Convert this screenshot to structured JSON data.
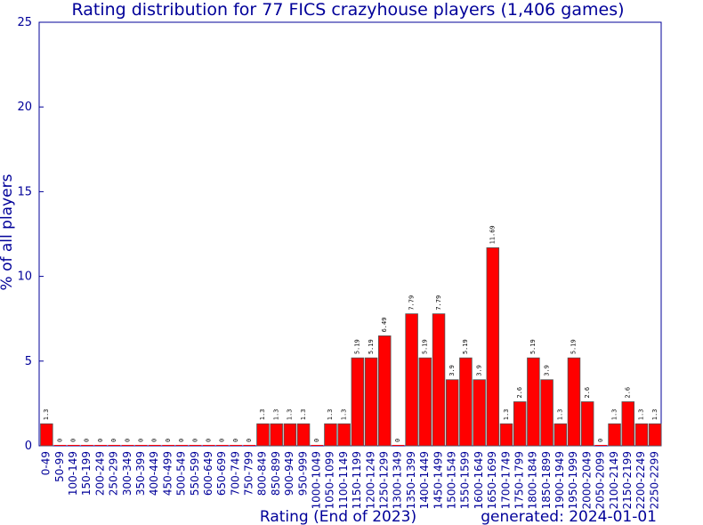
{
  "chart_data": {
    "type": "bar",
    "title": "Rating distribution for 77 FICS crazyhouse players (1,406 games)",
    "xlabel": "Rating (End of 2023)",
    "ylabel": "% of all players",
    "footer": "generated: 2024-01-01",
    "ylim": [
      0,
      25
    ],
    "yticks": [
      "0",
      "5",
      "10",
      "15",
      "20",
      "25"
    ],
    "grid": false,
    "bar_color": "#ff0000",
    "text_color": "#000099",
    "categories": [
      "0-49",
      "50-99",
      "100-149",
      "150-199",
      "200-249",
      "250-299",
      "300-349",
      "350-399",
      "400-449",
      "450-499",
      "500-549",
      "550-599",
      "600-649",
      "650-699",
      "700-749",
      "750-799",
      "800-849",
      "850-899",
      "900-949",
      "950-999",
      "1000-1049",
      "1050-1099",
      "1100-1149",
      "1150-1199",
      "1200-1249",
      "1250-1299",
      "1300-1349",
      "1350-1399",
      "1400-1449",
      "1450-1499",
      "1500-1549",
      "1550-1599",
      "1600-1649",
      "1650-1699",
      "1700-1749",
      "1750-1799",
      "1800-1849",
      "1850-1899",
      "1900-1949",
      "1950-1999",
      "2000-2049",
      "2050-2099",
      "2100-2149",
      "2150-2199",
      "2200-2249",
      "2250-2299"
    ],
    "values": [
      1.3,
      0,
      0,
      0,
      0,
      0,
      0,
      0,
      0,
      0,
      0,
      0,
      0,
      0,
      0,
      0,
      1.3,
      1.3,
      1.3,
      1.3,
      0,
      1.3,
      1.3,
      5.19,
      5.19,
      6.49,
      0,
      7.79,
      5.19,
      7.79,
      3.9,
      5.19,
      3.9,
      11.69,
      1.3,
      2.6,
      5.19,
      3.9,
      1.3,
      5.19,
      2.6,
      0,
      1.3,
      2.6,
      1.3,
      1.3
    ],
    "data_labels": [
      "1.3",
      "0",
      "0",
      "0",
      "0",
      "0",
      "0",
      "0",
      "0",
      "0",
      "0",
      "0",
      "0",
      "0",
      "0",
      "0",
      "1.3",
      "1.3",
      "1.3",
      "1.3",
      "0",
      "1.3",
      "1.3",
      "5.19",
      "5.19",
      "6.49",
      "0",
      "7.79",
      "5.19",
      "7.79",
      "3.9",
      "5.19",
      "3.9",
      "11.69",
      "1.3",
      "2.6",
      "5.19",
      "3.9",
      "1.3",
      "5.19",
      "2.6",
      "0",
      "1.3",
      "2.6",
      "1.3",
      "1.3"
    ]
  }
}
